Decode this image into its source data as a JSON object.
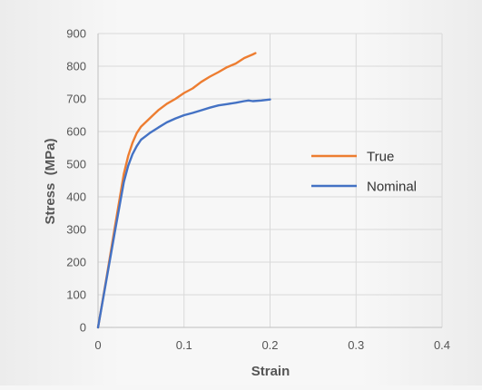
{
  "chart_data": {
    "type": "line",
    "xlabel": "Strain",
    "ylabel": "Stress  (MPa)",
    "xlim": [
      0,
      0.4
    ],
    "ylim": [
      0,
      900
    ],
    "x_ticks": [
      0,
      0.1,
      0.2,
      0.3,
      0.4
    ],
    "x_tick_labels": [
      "0",
      "0.1",
      "0.2",
      "0.3",
      "0.4"
    ],
    "y_ticks": [
      0,
      100,
      200,
      300,
      400,
      500,
      600,
      700,
      800,
      900
    ],
    "y_tick_labels": [
      "0",
      "100",
      "200",
      "300",
      "400",
      "500",
      "600",
      "700",
      "800",
      "900"
    ],
    "grid": true,
    "legend_position": "right",
    "series": [
      {
        "name": "True",
        "color": "#ED7D31",
        "x": [
          0,
          0.01,
          0.02,
          0.03,
          0.035,
          0.04,
          0.045,
          0.05,
          0.06,
          0.07,
          0.08,
          0.09,
          0.1,
          0.11,
          0.12,
          0.13,
          0.14,
          0.15,
          0.16,
          0.17,
          0.18,
          0.183
        ],
        "y": [
          0,
          155,
          315,
          470,
          525,
          565,
          595,
          615,
          640,
          665,
          685,
          700,
          718,
          732,
          752,
          768,
          782,
          797,
          808,
          825,
          836,
          840
        ]
      },
      {
        "name": "Nominal",
        "color": "#4472C4",
        "x": [
          0,
          0.01,
          0.02,
          0.03,
          0.035,
          0.04,
          0.045,
          0.05,
          0.055,
          0.06,
          0.07,
          0.08,
          0.09,
          0.1,
          0.11,
          0.12,
          0.13,
          0.14,
          0.15,
          0.16,
          0.17,
          0.175,
          0.18,
          0.19,
          0.2
        ],
        "y": [
          0,
          150,
          300,
          445,
          495,
          530,
          555,
          575,
          585,
          595,
          612,
          628,
          640,
          650,
          657,
          665,
          673,
          680,
          684,
          688,
          693,
          695,
          693,
          695,
          698
        ]
      }
    ]
  }
}
